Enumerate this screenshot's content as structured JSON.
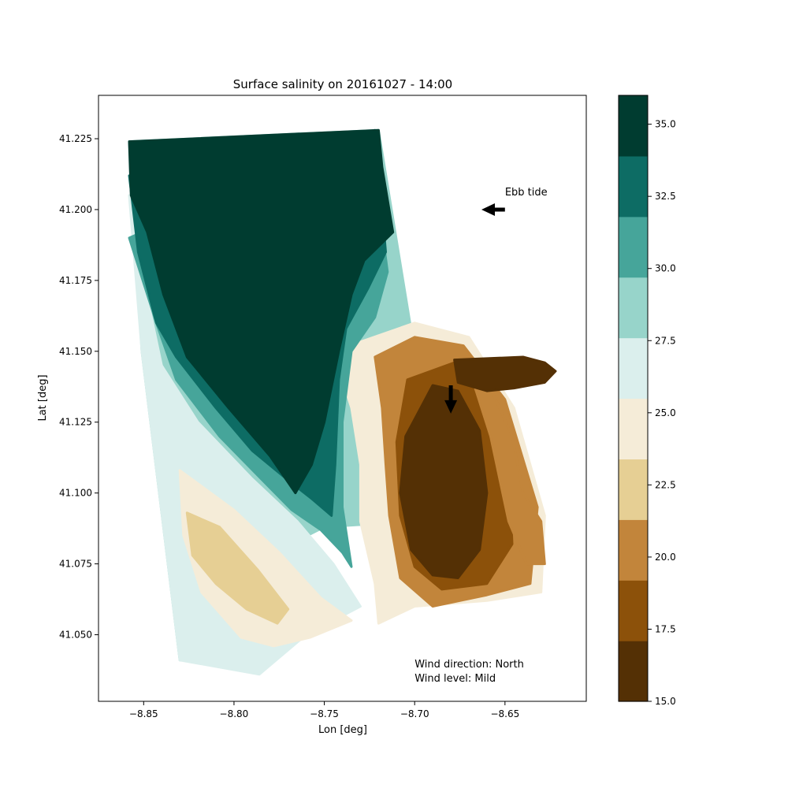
{
  "chart_data": {
    "type": "heatmap",
    "title": "Surface salinity on 20161027 - 14:00",
    "xlabel": "Lon [deg]",
    "ylabel": "Lat [deg]",
    "xlim": [
      -8.875,
      -8.605
    ],
    "ylim": [
      41.0265,
      41.2403
    ],
    "x_ticks": [
      -8.85,
      -8.8,
      -8.75,
      -8.7,
      -8.65
    ],
    "x_tick_labels": [
      "−8.85",
      "−8.80",
      "−8.75",
      "−8.70",
      "−8.65"
    ],
    "y_ticks": [
      41.05,
      41.075,
      41.1,
      41.125,
      41.15,
      41.175,
      41.2,
      41.225
    ],
    "y_tick_labels": [
      "41.050",
      "41.075",
      "41.100",
      "41.125",
      "41.150",
      "41.175",
      "41.200",
      "41.225"
    ],
    "grid": false,
    "colorbar": {
      "range": [
        15.0,
        36.0
      ],
      "tick_values": [
        15.0,
        17.5,
        20.0,
        22.5,
        25.0,
        27.5,
        30.0,
        32.5,
        35.0
      ],
      "tick_labels": [
        "15.0",
        "17.5",
        "20.0",
        "22.5",
        "25.0",
        "27.5",
        "30.0",
        "32.5",
        "35.0"
      ],
      "levels": [
        15.0,
        17.1,
        19.2,
        21.3,
        23.4,
        25.5,
        27.6,
        29.7,
        31.8,
        33.9,
        36.0
      ],
      "colors": [
        "#543005",
        "#8c510a",
        "#c2853b",
        "#e6cf94",
        "#f5ecd8",
        "#dbefed",
        "#97d4ca",
        "#46a59a",
        "#0d6c64",
        "#003c30"
      ]
    },
    "regions": [
      {
        "salinity": 29,
        "points": [
          [
            -8.858,
            41.224
          ],
          [
            -8.72,
            41.228
          ],
          [
            -8.7,
            41.15
          ],
          [
            -8.695,
            41.1
          ],
          [
            -8.7,
            41.09
          ],
          [
            -8.75,
            41.088
          ],
          [
            -8.775,
            41.08
          ],
          [
            -8.798,
            41.07
          ],
          [
            -8.818,
            41.058
          ],
          [
            -8.83,
            41.041
          ],
          [
            -8.851,
            41.15
          ]
        ]
      },
      {
        "salinity": 26,
        "points": [
          [
            -8.858,
            41.205
          ],
          [
            -8.85,
            41.175
          ],
          [
            -8.84,
            41.145
          ],
          [
            -8.82,
            41.125
          ],
          [
            -8.79,
            41.105
          ],
          [
            -8.765,
            41.09
          ],
          [
            -8.745,
            41.075
          ],
          [
            -8.73,
            41.06
          ],
          [
            -8.76,
            41.05
          ],
          [
            -8.786,
            41.036
          ],
          [
            -8.83,
            41.041
          ],
          [
            -8.851,
            41.15
          ]
        ]
      },
      {
        "salinity": 24,
        "points": [
          [
            -8.83,
            41.108
          ],
          [
            -8.8,
            41.094
          ],
          [
            -8.775,
            41.079
          ],
          [
            -8.752,
            41.063
          ],
          [
            -8.735,
            41.055
          ],
          [
            -8.758,
            41.049
          ],
          [
            -8.778,
            41.046
          ],
          [
            -8.796,
            41.049
          ],
          [
            -8.818,
            41.065
          ],
          [
            -8.828,
            41.085
          ]
        ]
      },
      {
        "salinity": 22,
        "points": [
          [
            -8.826,
            41.093
          ],
          [
            -8.808,
            41.088
          ],
          [
            -8.787,
            41.073
          ],
          [
            -8.77,
            41.059
          ],
          [
            -8.776,
            41.054
          ],
          [
            -8.793,
            41.059
          ],
          [
            -8.81,
            41.068
          ],
          [
            -8.823,
            41.078
          ]
        ]
      },
      {
        "salinity": 24,
        "points": [
          [
            -8.745,
            41.15
          ],
          [
            -8.735,
            41.13
          ],
          [
            -8.73,
            41.11
          ],
          [
            -8.73,
            41.09
          ],
          [
            -8.722,
            41.068
          ],
          [
            -8.72,
            41.054
          ],
          [
            -8.7,
            41.06
          ],
          [
            -8.66,
            41.062
          ],
          [
            -8.63,
            41.065
          ],
          [
            -8.628,
            41.092
          ],
          [
            -8.645,
            41.13
          ],
          [
            -8.67,
            41.155
          ],
          [
            -8.7,
            41.16
          ]
        ]
      },
      {
        "salinity": 21,
        "points": [
          [
            -8.722,
            41.148
          ],
          [
            -8.718,
            41.13
          ],
          [
            -8.716,
            41.11
          ],
          [
            -8.714,
            41.092
          ],
          [
            -8.708,
            41.07
          ],
          [
            -8.69,
            41.06
          ],
          [
            -8.66,
            41.064
          ],
          [
            -8.636,
            41.068
          ],
          [
            -8.632,
            41.095
          ],
          [
            -8.65,
            41.133
          ],
          [
            -8.673,
            41.152
          ],
          [
            -8.7,
            41.155
          ]
        ]
      },
      {
        "salinity": 19,
        "points": [
          [
            -8.704,
            41.14
          ],
          [
            -8.71,
            41.118
          ],
          [
            -8.708,
            41.092
          ],
          [
            -8.7,
            41.074
          ],
          [
            -8.685,
            41.066
          ],
          [
            -8.66,
            41.068
          ],
          [
            -8.646,
            41.082
          ],
          [
            -8.648,
            41.11
          ],
          [
            -8.66,
            41.14
          ],
          [
            -8.678,
            41.146
          ]
        ]
      },
      {
        "salinity": 16,
        "points": [
          [
            -8.69,
            41.138
          ],
          [
            -8.705,
            41.12
          ],
          [
            -8.708,
            41.1
          ],
          [
            -8.702,
            41.08
          ],
          [
            -8.69,
            41.071
          ],
          [
            -8.676,
            41.07
          ],
          [
            -8.664,
            41.08
          ],
          [
            -8.66,
            41.1
          ],
          [
            -8.664,
            41.122
          ],
          [
            -8.676,
            41.136
          ]
        ]
      },
      {
        "salinity": 21,
        "points": [
          [
            -8.66,
            41.14
          ],
          [
            -8.646,
            41.12
          ],
          [
            -8.64,
            41.1
          ],
          [
            -8.63,
            41.09
          ],
          [
            -8.628,
            41.075
          ],
          [
            -8.638,
            41.075
          ],
          [
            -8.648,
            41.09
          ],
          [
            -8.658,
            41.12
          ],
          [
            -8.668,
            41.14
          ]
        ]
      },
      {
        "salinity": 31,
        "points": [
          [
            -8.858,
            41.19
          ],
          [
            -8.843,
            41.16
          ],
          [
            -8.832,
            41.14
          ],
          [
            -8.808,
            41.12
          ],
          [
            -8.785,
            41.105
          ],
          [
            -8.768,
            41.094
          ],
          [
            -8.752,
            41.087
          ],
          [
            -8.74,
            41.079
          ],
          [
            -8.735,
            41.074
          ],
          [
            -8.74,
            41.095
          ],
          [
            -8.74,
            41.125
          ],
          [
            -8.735,
            41.15
          ],
          [
            -8.722,
            41.162
          ],
          [
            -8.715,
            41.178
          ],
          [
            -8.722,
            41.212
          ],
          [
            -8.725,
            41.227
          ]
        ]
      },
      {
        "salinity": 33,
        "points": [
          [
            -8.858,
            41.212
          ],
          [
            -8.853,
            41.185
          ],
          [
            -8.843,
            41.16
          ],
          [
            -8.832,
            41.148
          ],
          [
            -8.81,
            41.13
          ],
          [
            -8.79,
            41.115
          ],
          [
            -8.771,
            41.105
          ],
          [
            -8.757,
            41.098
          ],
          [
            -8.746,
            41.092
          ],
          [
            -8.744,
            41.11
          ],
          [
            -8.742,
            41.14
          ],
          [
            -8.738,
            41.158
          ],
          [
            -8.726,
            41.172
          ],
          [
            -8.716,
            41.185
          ],
          [
            -8.72,
            41.215
          ],
          [
            -8.722,
            41.228
          ]
        ]
      },
      {
        "salinity": 35,
        "points": [
          [
            -8.858,
            41.224
          ],
          [
            -8.72,
            41.228
          ],
          [
            -8.718,
            41.215
          ],
          [
            -8.712,
            41.192
          ],
          [
            -8.728,
            41.182
          ],
          [
            -8.735,
            41.17
          ],
          [
            -8.742,
            41.15
          ],
          [
            -8.75,
            41.125
          ],
          [
            -8.757,
            41.11
          ],
          [
            -8.766,
            41.1
          ],
          [
            -8.78,
            41.113
          ],
          [
            -8.803,
            41.13
          ],
          [
            -8.826,
            41.148
          ],
          [
            -8.839,
            41.17
          ],
          [
            -8.848,
            41.192
          ],
          [
            -8.857,
            41.205
          ]
        ]
      },
      {
        "salinity": 16,
        "points": [
          [
            -8.678,
            41.147
          ],
          [
            -8.64,
            41.148
          ],
          [
            -8.628,
            41.146
          ],
          [
            -8.622,
            41.143
          ],
          [
            -8.628,
            41.139
          ],
          [
            -8.645,
            41.137
          ],
          [
            -8.66,
            41.136
          ],
          [
            -8.676,
            41.139
          ]
        ]
      }
    ],
    "annotations": [
      {
        "text": "Ebb tide",
        "x": -8.65,
        "y": 41.205
      },
      {
        "text": "Wind direction: North",
        "x": -8.7,
        "y": 41.0385
      },
      {
        "text": "Wind level: Mild",
        "x": -8.7,
        "y": 41.0335
      }
    ],
    "arrows": [
      {
        "from": [
          -8.65,
          41.2
        ],
        "to": [
          -8.663,
          41.2
        ]
      },
      {
        "from": [
          -8.68,
          41.138
        ],
        "to": [
          -8.68,
          41.128
        ]
      }
    ]
  }
}
